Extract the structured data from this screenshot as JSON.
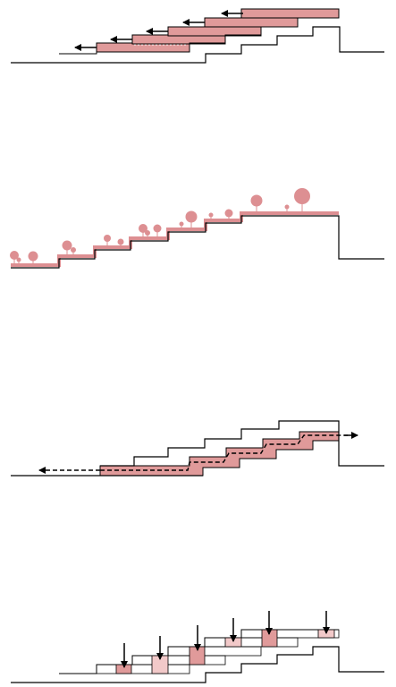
{
  "colors": {
    "background": "#ffffff",
    "line": "#000000",
    "accent_fill": "#e09a9a",
    "accent_fill_light": "#f2c9c9",
    "accent_stroke": "#9b3b3b",
    "tree": "#dd8f92",
    "ground_highlight": "#dd8f92"
  },
  "panels": [
    {
      "name": "panel-shifted-slabs",
      "content": "stepped-terrain-with-slabs-and-left-arrows"
    },
    {
      "name": "panel-vegetated-terraces",
      "content": "stepped-terrain-with-trees"
    },
    {
      "name": "panel-corridor-path",
      "content": "stepped-terrain-with-shaded-path-and-dashed-arrows"
    },
    {
      "name": "panel-vertical-loads",
      "content": "stepped-terrain-with-boxes-and-downward-arrows"
    }
  ]
}
